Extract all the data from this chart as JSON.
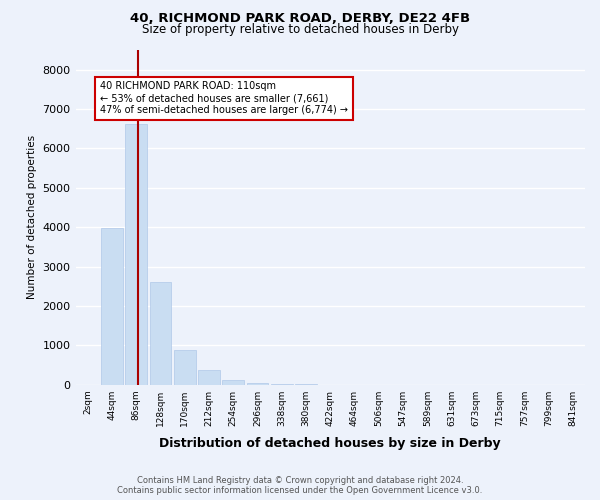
{
  "title1": "40, RICHMOND PARK ROAD, DERBY, DE22 4FB",
  "title2": "Size of property relative to detached houses in Derby",
  "xlabel": "Distribution of detached houses by size in Derby",
  "ylabel": "Number of detached properties",
  "bar_color": "#c9ddf2",
  "bar_edge_color": "#b0c8e8",
  "bg_color": "#edf2fb",
  "grid_color": "#ffffff",
  "categories": [
    "2sqm",
    "44sqm",
    "86sqm",
    "128sqm",
    "170sqm",
    "212sqm",
    "254sqm",
    "296sqm",
    "338sqm",
    "380sqm",
    "422sqm",
    "464sqm",
    "506sqm",
    "547sqm",
    "589sqm",
    "631sqm",
    "673sqm",
    "715sqm",
    "757sqm",
    "799sqm",
    "841sqm"
  ],
  "values": [
    0,
    3980,
    6610,
    2600,
    890,
    370,
    130,
    50,
    10,
    5,
    0,
    0,
    0,
    0,
    0,
    0,
    0,
    0,
    0,
    0,
    0
  ],
  "vline_color": "#aa0000",
  "vline_pos": 2.07,
  "annotation_title": "40 RICHMOND PARK ROAD: 110sqm",
  "annotation_line1": "← 53% of detached houses are smaller (7,661)",
  "annotation_line2": "47% of semi-detached houses are larger (6,774) →",
  "annotation_box_color": "#ffffff",
  "annotation_box_edge": "#cc0000",
  "footer1": "Contains HM Land Registry data © Crown copyright and database right 2024.",
  "footer2": "Contains public sector information licensed under the Open Government Licence v3.0.",
  "ylim": [
    0,
    8500
  ],
  "yticks": [
    0,
    1000,
    2000,
    3000,
    4000,
    5000,
    6000,
    7000,
    8000
  ]
}
